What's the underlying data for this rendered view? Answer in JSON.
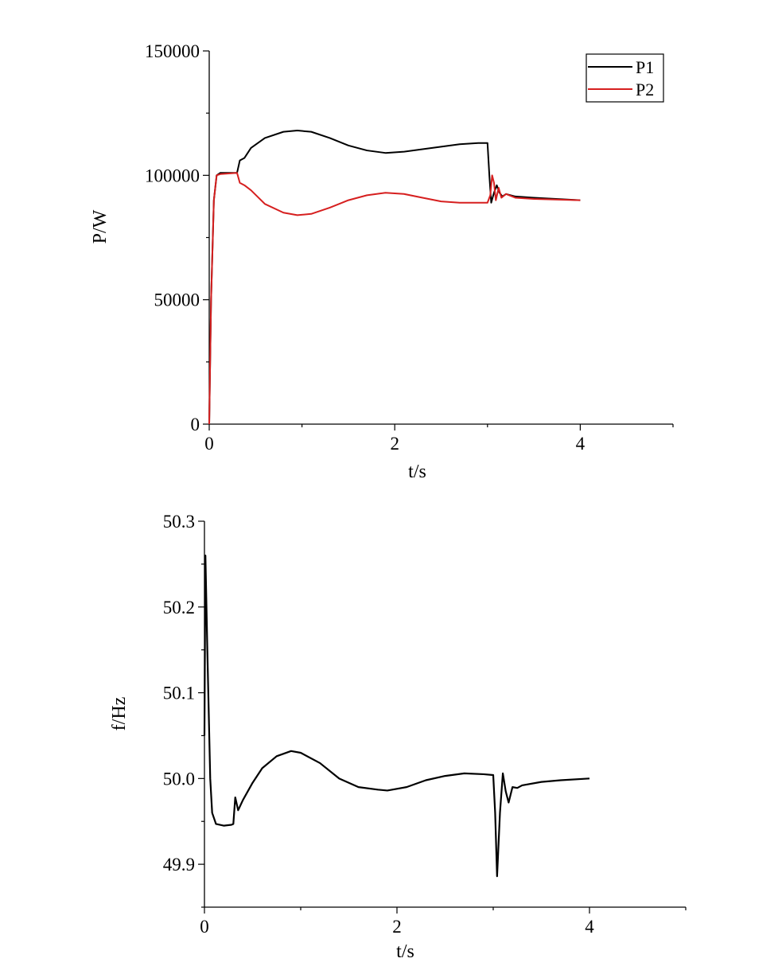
{
  "chart_data": [
    {
      "type": "line",
      "xlabel": "t/s",
      "ylabel": "P/W",
      "xlim": [
        0,
        5
      ],
      "ylim": [
        0,
        150000
      ],
      "x_ticks": [
        "0",
        "2",
        "4"
      ],
      "x_tick_values": [
        0,
        2,
        4
      ],
      "y_ticks": [
        "0",
        "50000",
        "100000",
        "150000"
      ],
      "y_tick_values": [
        0,
        50000,
        100000,
        150000
      ],
      "legend_position": "top-right",
      "grid": false,
      "series": [
        {
          "name": "P1",
          "color": "#000000",
          "points": [
            [
              0,
              0
            ],
            [
              0.02,
              50000
            ],
            [
              0.05,
              90000
            ],
            [
              0.08,
              100000
            ],
            [
              0.12,
              101000
            ],
            [
              0.3,
              101000
            ],
            [
              0.33,
              106000
            ],
            [
              0.38,
              107000
            ],
            [
              0.45,
              111000
            ],
            [
              0.6,
              115000
            ],
            [
              0.8,
              117500
            ],
            [
              0.95,
              118000
            ],
            [
              1.1,
              117500
            ],
            [
              1.3,
              115000
            ],
            [
              1.5,
              112000
            ],
            [
              1.7,
              110000
            ],
            [
              1.9,
              109000
            ],
            [
              2.1,
              109500
            ],
            [
              2.3,
              110500
            ],
            [
              2.5,
              111500
            ],
            [
              2.7,
              112500
            ],
            [
              2.9,
              113000
            ],
            [
              3.0,
              113000
            ],
            [
              3.02,
              100000
            ],
            [
              3.04,
              89000
            ],
            [
              3.07,
              93000
            ],
            [
              3.1,
              96000
            ],
            [
              3.13,
              93000
            ],
            [
              3.16,
              91500
            ],
            [
              3.2,
              92500
            ],
            [
              3.3,
              91500
            ],
            [
              3.5,
              91000
            ],
            [
              4.0,
              90000
            ]
          ]
        },
        {
          "name": "P2",
          "color": "#d61f1f",
          "points": [
            [
              0,
              0
            ],
            [
              0.02,
              50000
            ],
            [
              0.05,
              90000
            ],
            [
              0.08,
              100000
            ],
            [
              0.12,
              100500
            ],
            [
              0.3,
              101000
            ],
            [
              0.33,
              97000
            ],
            [
              0.38,
              96000
            ],
            [
              0.45,
              94000
            ],
            [
              0.6,
              88500
            ],
            [
              0.8,
              85000
            ],
            [
              0.95,
              84000
            ],
            [
              1.1,
              84500
            ],
            [
              1.3,
              87000
            ],
            [
              1.5,
              90000
            ],
            [
              1.7,
              92000
            ],
            [
              1.9,
              93000
            ],
            [
              2.1,
              92500
            ],
            [
              2.3,
              91000
            ],
            [
              2.5,
              89500
            ],
            [
              2.7,
              89000
            ],
            [
              2.9,
              89000
            ],
            [
              3.0,
              89000
            ],
            [
              3.03,
              92000
            ],
            [
              3.05,
              100000
            ],
            [
              3.07,
              97000
            ],
            [
              3.09,
              90000
            ],
            [
              3.12,
              95000
            ],
            [
              3.15,
              91000
            ],
            [
              3.2,
              92500
            ],
            [
              3.3,
              91000
            ],
            [
              3.5,
              90500
            ],
            [
              4.0,
              90000
            ]
          ]
        }
      ]
    },
    {
      "type": "line",
      "xlabel": "t/s",
      "ylabel": "f/Hz",
      "xlim": [
        0,
        5
      ],
      "ylim": [
        49.85,
        50.3
      ],
      "x_ticks": [
        "0",
        "2",
        "4"
      ],
      "x_tick_values": [
        0,
        2,
        4
      ],
      "y_ticks": [
        "49.9",
        "50.0",
        "50.1",
        "50.2",
        "50.3"
      ],
      "y_tick_values": [
        49.9,
        50.0,
        50.1,
        50.2,
        50.3
      ],
      "grid": false,
      "series": [
        {
          "color": "#000000",
          "points": [
            [
              0,
              50.05
            ],
            [
              0.01,
              50.26
            ],
            [
              0.03,
              50.15
            ],
            [
              0.06,
              50.0
            ],
            [
              0.08,
              49.96
            ],
            [
              0.12,
              49.947
            ],
            [
              0.2,
              49.945
            ],
            [
              0.28,
              49.946
            ],
            [
              0.3,
              49.947
            ],
            [
              0.32,
              49.978
            ],
            [
              0.35,
              49.963
            ],
            [
              0.4,
              49.975
            ],
            [
              0.5,
              49.995
            ],
            [
              0.6,
              50.012
            ],
            [
              0.75,
              50.026
            ],
            [
              0.9,
              50.032
            ],
            [
              1.0,
              50.03
            ],
            [
              1.2,
              50.018
            ],
            [
              1.4,
              50.0
            ],
            [
              1.6,
              49.99
            ],
            [
              1.8,
              49.987
            ],
            [
              1.9,
              49.986
            ],
            [
              2.1,
              49.99
            ],
            [
              2.3,
              49.998
            ],
            [
              2.5,
              50.003
            ],
            [
              2.7,
              50.006
            ],
            [
              2.9,
              50.005
            ],
            [
              3.0,
              50.004
            ],
            [
              3.02,
              49.96
            ],
            [
              3.04,
              49.886
            ],
            [
              3.07,
              49.96
            ],
            [
              3.1,
              50.006
            ],
            [
              3.13,
              49.985
            ],
            [
              3.16,
              49.972
            ],
            [
              3.2,
              49.99
            ],
            [
              3.25,
              49.989
            ],
            [
              3.3,
              49.992
            ],
            [
              3.5,
              49.996
            ],
            [
              3.7,
              49.998
            ],
            [
              4.0,
              50.0
            ]
          ]
        }
      ]
    }
  ]
}
